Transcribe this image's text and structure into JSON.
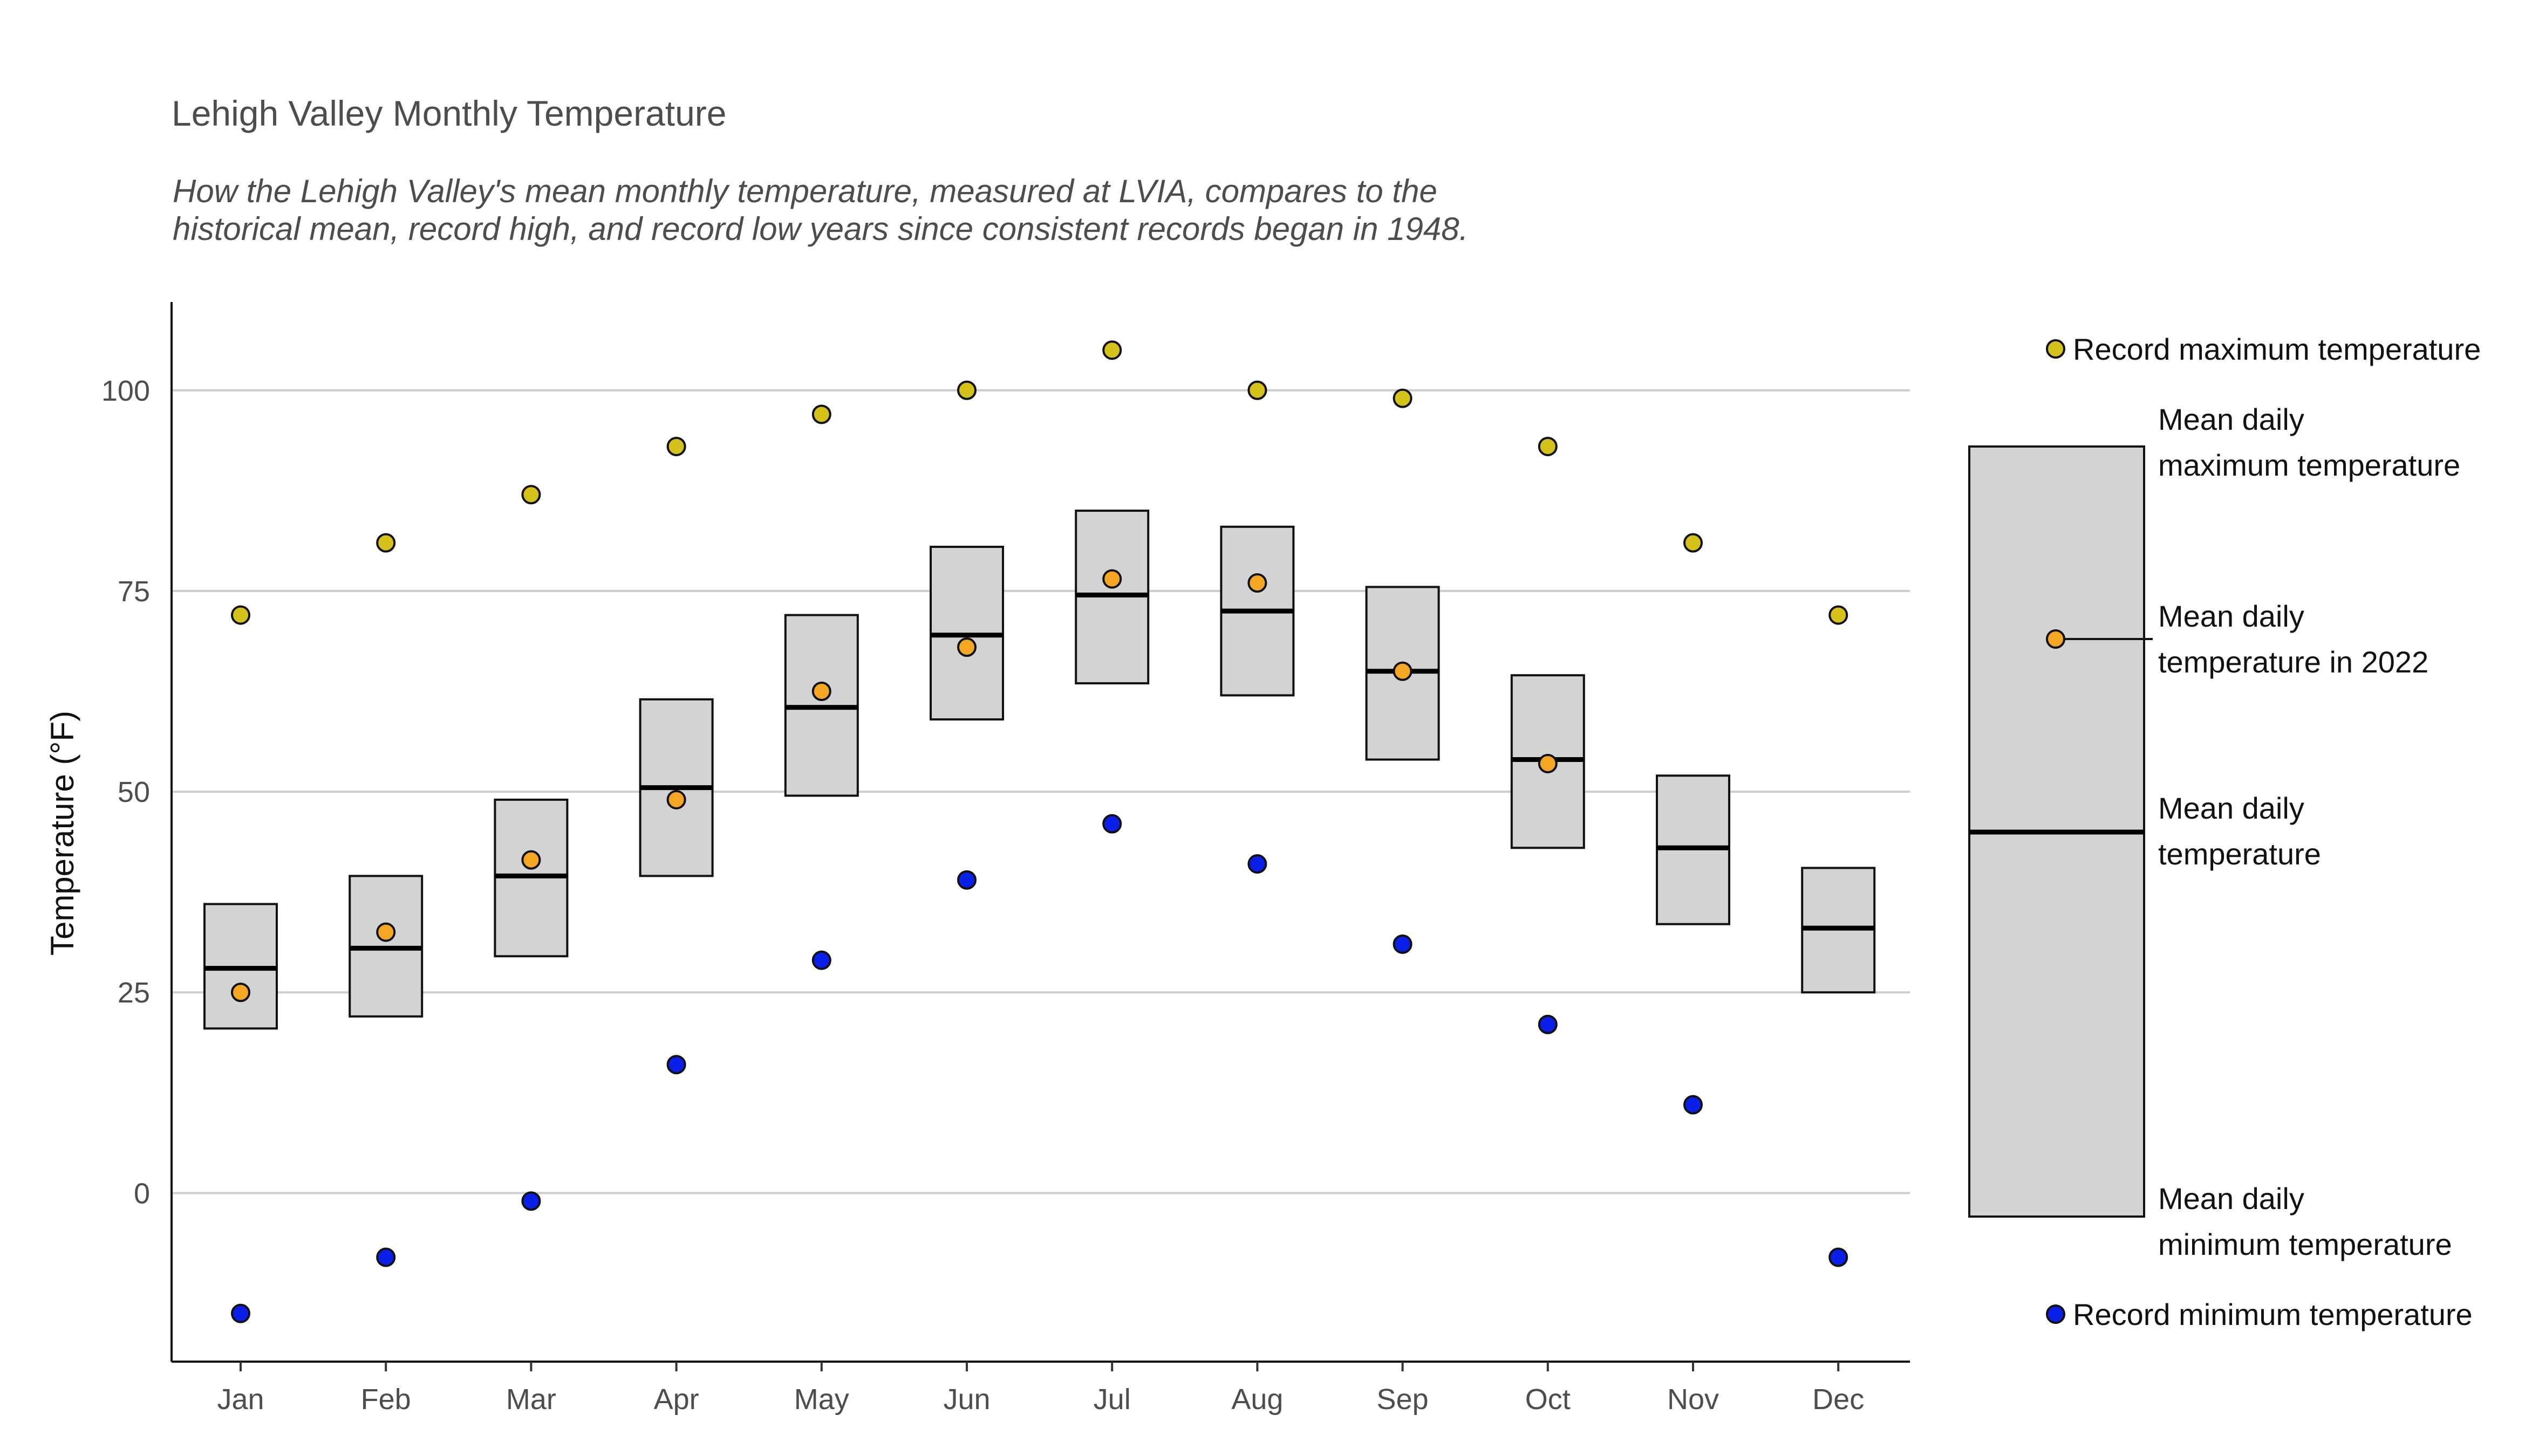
{
  "chart_data": {
    "type": "box",
    "title": "Lehigh Valley Monthly Temperature",
    "subtitle_lines": [
      "How the Lehigh Valley's mean monthly temperature, measured at LVIA, compares to the",
      "historical mean, record high, and record low years since consistent records began in 1948."
    ],
    "ylabel": "Temperature (°F)",
    "xlabel": "",
    "ylim": [
      -21,
      111
    ],
    "yticks": [
      0,
      25,
      50,
      75,
      100
    ],
    "grid": "horizontal",
    "legend_position": "right",
    "categories": [
      "Jan",
      "Feb",
      "Mar",
      "Apr",
      "May",
      "Jun",
      "Jul",
      "Aug",
      "Sep",
      "Oct",
      "Nov",
      "Dec"
    ],
    "series": [
      {
        "name": "Mean daily maximum temperature",
        "values": [
          36,
          39.5,
          49,
          61.5,
          72,
          80.5,
          85,
          83,
          75.5,
          64.5,
          52,
          40.5
        ]
      },
      {
        "name": "Mean daily temperature",
        "values": [
          28,
          30.5,
          39.5,
          50.5,
          60.5,
          69.5,
          74.5,
          72.5,
          65,
          54,
          43,
          33
        ]
      },
      {
        "name": "Mean daily minimum temperature",
        "values": [
          20.5,
          22,
          29.5,
          39.5,
          49.5,
          59,
          63.5,
          62,
          54,
          43,
          33.5,
          25
        ]
      },
      {
        "name": "Mean daily temperature in 2022",
        "values": [
          25,
          32.5,
          41.5,
          49,
          62.5,
          68,
          76.5,
          76,
          65,
          53.5,
          null,
          null
        ]
      },
      {
        "name": "Record maximum temperature",
        "values": [
          72,
          81,
          87,
          93,
          97,
          100,
          105,
          100,
          99,
          93,
          81,
          72
        ]
      },
      {
        "name": "Record minimum temperature",
        "values": [
          -15,
          -8,
          -1,
          16,
          29,
          39,
          46,
          41,
          31,
          21,
          11,
          -8
        ]
      }
    ],
    "legend": {
      "record_max": "Record maximum temperature",
      "mean_max_lines": [
        "Mean daily",
        "maximum temperature"
      ],
      "mean_2022_lines": [
        "Mean daily",
        "temperature in 2022"
      ],
      "mean_lines": [
        "Mean daily",
        "temperature"
      ],
      "mean_min_lines": [
        "Mean daily",
        "minimum temperature"
      ],
      "record_min": "Record minimum temperature"
    },
    "colors": {
      "record_max": "#d4c21a",
      "mean_2022": "#f5a623",
      "record_min": "#0a1fe8",
      "box_fill": "#d3d3d3",
      "grid": "#cccccc"
    }
  }
}
